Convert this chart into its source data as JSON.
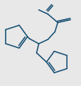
{
  "background": "#e8e8e8",
  "line_color": "#1a5276",
  "line_width": 1.2,
  "figsize": [
    1.16,
    1.22
  ],
  "dpi": 100,
  "xlim": [
    0,
    116
  ],
  "ylim": [
    0,
    122
  ]
}
